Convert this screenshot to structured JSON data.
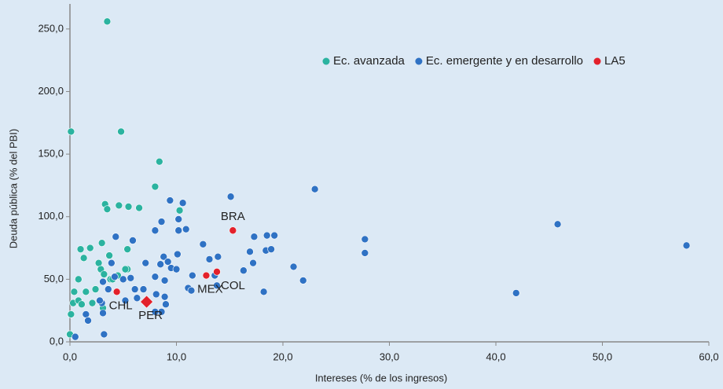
{
  "chart_data": {
    "type": "scatter",
    "xlabel": "Intereses (% de los ingresos)",
    "ylabel": "Deuda pública (% del PBI)",
    "xlim": [
      0,
      60
    ],
    "ylim": [
      0,
      270
    ],
    "xticks": [
      {
        "value": 0,
        "label": "0,0"
      },
      {
        "value": 10,
        "label": "10,0"
      },
      {
        "value": 20,
        "label": "20,0"
      },
      {
        "value": 30,
        "label": "30,0"
      },
      {
        "value": 40,
        "label": "40,0"
      },
      {
        "value": 50,
        "label": "50,0"
      },
      {
        "value": 60,
        "label": "60,0"
      }
    ],
    "yticks": [
      {
        "value": 0,
        "label": "0,0"
      },
      {
        "value": 50,
        "label": "50,0"
      },
      {
        "value": 100,
        "label": "100,0"
      },
      {
        "value": 150,
        "label": "150,0"
      },
      {
        "value": 200,
        "label": "200,0"
      },
      {
        "value": 250,
        "label": "250,0"
      }
    ],
    "legend": "upper right",
    "series": [
      {
        "name": "Ec. avanzada",
        "color": "#2bb3a0",
        "x": [
          3.5,
          0.1,
          4.8,
          8.4,
          8.0,
          3.3,
          3.5,
          4.6,
          5.5,
          6.5,
          10.3,
          1.0,
          1.9,
          3.0,
          1.3,
          5.4,
          3.7,
          2.7,
          0.8,
          2.9,
          3.2,
          3.8,
          1.5,
          0.4,
          0.3,
          0.8,
          1.1,
          2.1,
          2.4,
          0.1,
          0.0,
          5.4,
          3.1,
          4.0,
          4.5,
          5.2
        ],
        "values": [
          256,
          168,
          168,
          144,
          124,
          110,
          106,
          109,
          108,
          107,
          105,
          74,
          75,
          79,
          67,
          74,
          69,
          63,
          50,
          58,
          54,
          50,
          40,
          40,
          31,
          33,
          30,
          31,
          42,
          22,
          6,
          58,
          27,
          50,
          53,
          58
        ]
      },
      {
        "name": "Ec. emergente y en desarrollo",
        "color": "#2f72c4",
        "x": [
          15.1,
          23.0,
          45.8,
          41.9,
          57.9,
          27.7,
          27.7,
          9.4,
          10.6,
          8.6,
          8.0,
          10.2,
          10.2,
          10.9,
          4.3,
          5.9,
          12.5,
          17.3,
          18.5,
          19.2,
          18.4,
          18.9,
          16.9,
          17.2,
          16.3,
          21.0,
          21.9,
          18.2,
          13.1,
          13.9,
          8.8,
          10.1,
          7.1,
          8.5,
          9.2,
          9.5,
          10.0,
          11.5,
          13.6,
          4.2,
          5.0,
          5.7,
          8.0,
          8.9,
          11.1,
          11.4,
          3.1,
          3.6,
          6.1,
          6.9,
          6.3,
          8.1,
          8.9,
          9.0,
          8.6,
          5.2,
          3.0,
          2.8,
          1.5,
          1.7,
          3.1,
          8.0,
          3.2,
          0.5,
          13.8,
          3.9
        ],
        "values": [
          116,
          122,
          94,
          39,
          77,
          82,
          71,
          113,
          111,
          96,
          89,
          98,
          89,
          90,
          84,
          81,
          78,
          84,
          85,
          85,
          73,
          74,
          72,
          63,
          57,
          60,
          49,
          40,
          66,
          68,
          68,
          70,
          63,
          62,
          64,
          59,
          58,
          53,
          53,
          52,
          50,
          51,
          52,
          49,
          43,
          41,
          48,
          42,
          42,
          42,
          35,
          38,
          36,
          30,
          24,
          33,
          31,
          33,
          22,
          17,
          23,
          24,
          6,
          4,
          45,
          63
        ]
      },
      {
        "name": "LA5",
        "color": "#e3212b",
        "x": [
          15.3,
          13.8,
          12.8,
          4.4,
          7.2
        ],
        "values": [
          89,
          56,
          53,
          40,
          32
        ],
        "labels": [
          "BRA",
          "COL",
          "MEX",
          "CHL",
          "PER"
        ],
        "markers": [
          "circle",
          "circle",
          "circle",
          "circle",
          "diamond"
        ]
      }
    ]
  }
}
